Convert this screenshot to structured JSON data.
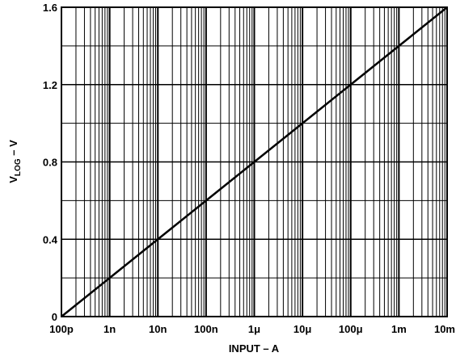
{
  "chart_data": {
    "type": "line",
    "title": "",
    "xlabel": "INPUT – A",
    "ylabel_main": "V",
    "ylabel_sub": "LOG",
    "ylabel_tail": " – V",
    "xscale": "log",
    "xlim": [
      1e-10,
      0.01
    ],
    "ylim": [
      0,
      1.6
    ],
    "grid": true,
    "x_ticks": [
      {
        "value": 1e-10,
        "label": "100p"
      },
      {
        "value": 1e-09,
        "label": "1n"
      },
      {
        "value": 1e-08,
        "label": "10n"
      },
      {
        "value": 1e-07,
        "label": "100n"
      },
      {
        "value": 1e-06,
        "label": "1μ"
      },
      {
        "value": 1e-05,
        "label": "10μ"
      },
      {
        "value": 0.0001,
        "label": "100μ"
      },
      {
        "value": 0.001,
        "label": "1m"
      },
      {
        "value": 0.01,
        "label": "10m"
      }
    ],
    "y_ticks": [
      {
        "value": 0,
        "label": "0"
      },
      {
        "value": 0.4,
        "label": "0.4"
      },
      {
        "value": 0.8,
        "label": "0.8"
      },
      {
        "value": 1.2,
        "label": "1.2"
      },
      {
        "value": 1.6,
        "label": "1.6"
      }
    ],
    "series": [
      {
        "x": [
          1e-10,
          1e-09,
          1e-08,
          1e-07,
          1e-06,
          1e-05,
          0.0001,
          0.001,
          0.01
        ],
        "y": [
          0,
          0.2,
          0.4,
          0.6,
          0.8,
          1.0,
          1.2,
          1.4,
          1.6
        ]
      }
    ]
  }
}
